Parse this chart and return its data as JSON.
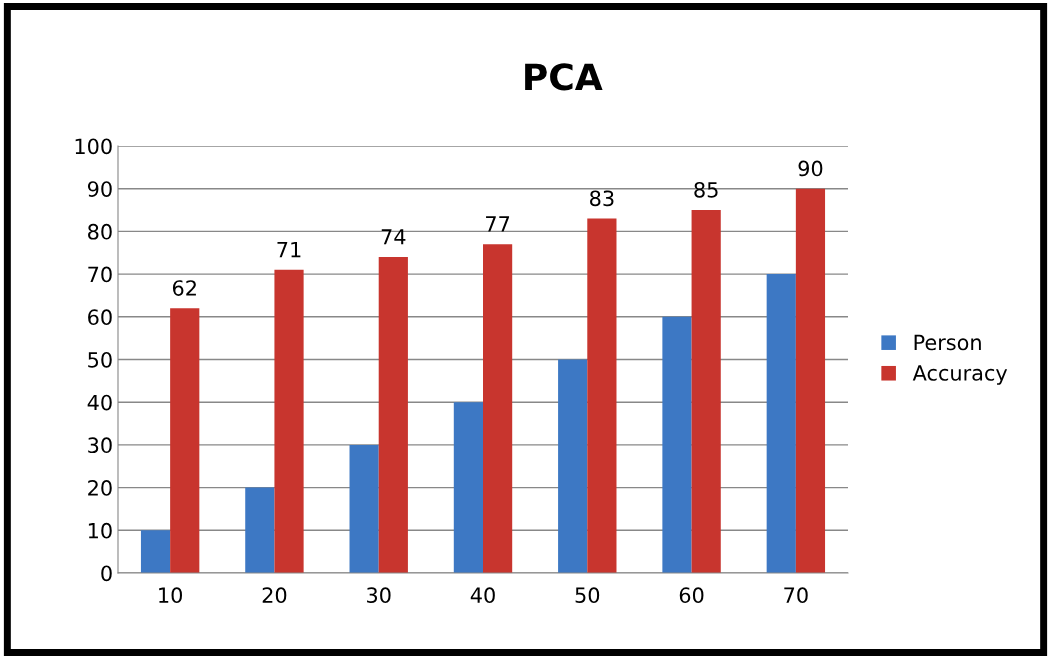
{
  "chart_data": {
    "type": "bar",
    "title": "PCA",
    "categories": [
      "10",
      "20",
      "30",
      "40",
      "50",
      "60",
      "70"
    ],
    "series": [
      {
        "name": "Person",
        "color": "#3d78c4",
        "values": [
          10,
          20,
          30,
          40,
          50,
          60,
          70
        ]
      },
      {
        "name": "Accuracy",
        "color": "#c8352e",
        "values": [
          62,
          71,
          74,
          77,
          83,
          85,
          90
        ],
        "value_labels": [
          "62",
          "71",
          "74",
          "77",
          "83",
          "85",
          "90"
        ]
      }
    ],
    "ylim": [
      0,
      100
    ],
    "yticks": [
      0,
      10,
      20,
      30,
      40,
      50,
      60,
      70,
      80,
      90,
      100
    ],
    "grid": "y",
    "legend": "right"
  }
}
